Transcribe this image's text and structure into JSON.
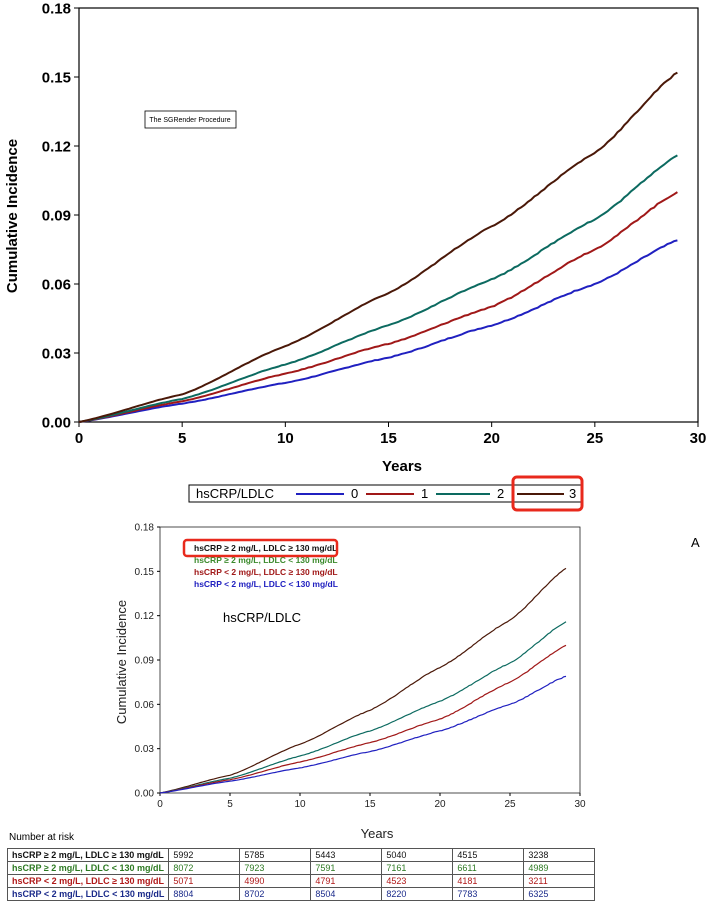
{
  "chart_data": [
    {
      "type": "line",
      "title": "",
      "xlabel": "Years",
      "ylabel": "Cumulative Incidence",
      "xlim": [
        0,
        30
      ],
      "ylim": [
        0,
        0.18
      ],
      "xticks": [
        "0",
        "5",
        "10",
        "15",
        "20",
        "25",
        "30"
      ],
      "yticks": [
        "0.00",
        "0.03",
        "0.06",
        "0.09",
        "0.12",
        "0.15",
        "0.18"
      ],
      "grid": false,
      "annotation": "The SGRender Procedure",
      "legend_title": "hsCRP/LDLC",
      "legend_position": "bottom",
      "series": [
        {
          "name": "0",
          "color": "#2020c0",
          "x": [
            0,
            5,
            10,
            15,
            20,
            25,
            29
          ],
          "y": [
            0,
            0.008,
            0.017,
            0.028,
            0.042,
            0.06,
            0.079
          ]
        },
        {
          "name": "1",
          "color": "#a01818",
          "x": [
            0,
            5,
            10,
            15,
            20,
            25,
            29
          ],
          "y": [
            0,
            0.009,
            0.021,
            0.034,
            0.05,
            0.075,
            0.1
          ]
        },
        {
          "name": "2",
          "color": "#0c6a60",
          "x": [
            0,
            5,
            10,
            15,
            20,
            25,
            29
          ],
          "y": [
            0,
            0.01,
            0.025,
            0.042,
            0.062,
            0.088,
            0.116
          ]
        },
        {
          "name": "3",
          "color": "#4a1808",
          "x": [
            0,
            5,
            10,
            15,
            20,
            25,
            29
          ],
          "y": [
            0,
            0.012,
            0.033,
            0.056,
            0.085,
            0.117,
            0.152
          ]
        }
      ]
    },
    {
      "type": "line",
      "title": "",
      "panel_label": "A",
      "xlabel": "Years",
      "ylabel": "Cumulative Incidence",
      "xlim": [
        0,
        30
      ],
      "ylim": [
        0,
        0.18
      ],
      "xticks": [
        "0",
        "5",
        "10",
        "15",
        "20",
        "25",
        "30"
      ],
      "yticks": [
        "0.00",
        "0.03",
        "0.06",
        "0.09",
        "0.12",
        "0.15",
        "0.18"
      ],
      "grid": false,
      "legend_title": "hsCRP/LDLC",
      "legend_position": "top-left",
      "series": [
        {
          "name": "hsCRP ≥ 2 mg/L, LDLC ≥ 130 mg/dL",
          "color": "#4a1808",
          "x": [
            0,
            5,
            10,
            15,
            20,
            25,
            29
          ],
          "y": [
            0,
            0.012,
            0.033,
            0.056,
            0.085,
            0.117,
            0.152
          ]
        },
        {
          "name": "hsCRP ≥ 2 mg/L, LDLC < 130 mg/dL",
          "color": "#0c6a60",
          "x": [
            0,
            5,
            10,
            15,
            20,
            25,
            29
          ],
          "y": [
            0,
            0.01,
            0.025,
            0.042,
            0.062,
            0.088,
            0.116
          ]
        },
        {
          "name": "hsCRP < 2 mg/L, LDLC ≥ 130 mg/dL",
          "color": "#a01818",
          "x": [
            0,
            5,
            10,
            15,
            20,
            25,
            29
          ],
          "y": [
            0,
            0.009,
            0.021,
            0.034,
            0.05,
            0.075,
            0.1
          ]
        },
        {
          "name": "hsCRP < 2 mg/L, LDLC < 130 mg/dL",
          "color": "#2020c0",
          "x": [
            0,
            5,
            10,
            15,
            20,
            25,
            29
          ],
          "y": [
            0,
            0.008,
            0.017,
            0.028,
            0.042,
            0.06,
            0.079
          ]
        }
      ]
    }
  ],
  "risk_table": {
    "title": "Number at risk",
    "rows": [
      {
        "label": "hsCRP ≥ 2 mg/L, LDLC ≥ 130 mg/dL",
        "color": "#111111",
        "values": [
          "5992",
          "5785",
          "5443",
          "5040",
          "4515",
          "3238"
        ]
      },
      {
        "label": "hsCRP ≥ 2 mg/L, LDLC < 130 mg/dL",
        "color": "#2d7a22",
        "values": [
          "8072",
          "7923",
          "7591",
          "7161",
          "6611",
          "4989"
        ]
      },
      {
        "label": "hsCRP < 2 mg/L, LDLC ≥ 130 mg/dL",
        "color": "#b01818",
        "values": [
          "5071",
          "4990",
          "4791",
          "4523",
          "4181",
          "3211"
        ]
      },
      {
        "label": "hsCRP < 2 mg/L, LDLC < 130 mg/dL",
        "color": "#1a2a8a",
        "values": [
          "8804",
          "8702",
          "8504",
          "8220",
          "7783",
          "6325"
        ]
      }
    ]
  },
  "highlight_color": "#e8291c"
}
